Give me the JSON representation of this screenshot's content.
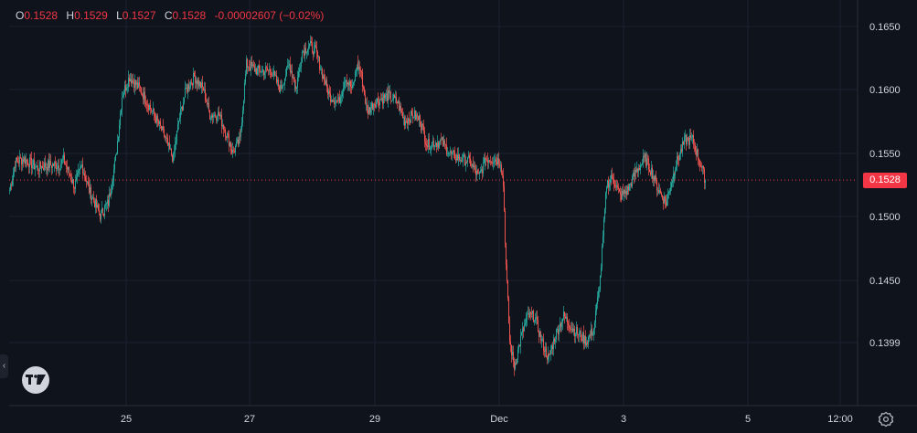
{
  "ohlc": {
    "o_label": "O",
    "o_value": "0.1528",
    "h_label": "H",
    "h_value": "0.1529",
    "l_label": "L",
    "l_value": "0.1527",
    "c_label": "C",
    "c_value": "0.1528",
    "change": "-0.00002607 (−0.02%)"
  },
  "current_price_label": "0.1528",
  "colors": {
    "background": "#0f131c",
    "up": "#26a69a",
    "down": "#ef5350",
    "grid": "#1c2030",
    "price_line": "#f23645"
  },
  "icons": [
    "collapse-chevron-icon",
    "tradingview-logo-icon",
    "settings-gear-icon"
  ],
  "chart_data": {
    "type": "candlestick",
    "y_ticks": [
      "0.1650",
      "0.1600",
      "0.1550",
      "0.1500",
      "0.1450",
      "0.1399"
    ],
    "x_ticks": [
      "25",
      "27",
      "29",
      "Dec",
      "3",
      "5",
      "12:00"
    ],
    "ylim": [
      0.1363,
      0.1667
    ],
    "current_price": 0.1528,
    "grid": true,
    "anchors": [
      [
        0,
        0.152
      ],
      [
        6,
        0.1542
      ],
      [
        15,
        0.1545
      ],
      [
        30,
        0.1538
      ],
      [
        45,
        0.154
      ],
      [
        55,
        0.154
      ],
      [
        60,
        0.1544
      ],
      [
        72,
        0.1523
      ],
      [
        80,
        0.154
      ],
      [
        88,
        0.152
      ],
      [
        100,
        0.15
      ],
      [
        110,
        0.151
      ],
      [
        118,
        0.1545
      ],
      [
        125,
        0.1595
      ],
      [
        133,
        0.161
      ],
      [
        145,
        0.16
      ],
      [
        160,
        0.158
      ],
      [
        170,
        0.1565
      ],
      [
        182,
        0.1545
      ],
      [
        188,
        0.1575
      ],
      [
        196,
        0.16
      ],
      [
        205,
        0.161
      ],
      [
        215,
        0.16
      ],
      [
        222,
        0.158
      ],
      [
        232,
        0.158
      ],
      [
        240,
        0.1565
      ],
      [
        248,
        0.155
      ],
      [
        256,
        0.156
      ],
      [
        263,
        0.162
      ],
      [
        275,
        0.1615
      ],
      [
        290,
        0.1615
      ],
      [
        300,
        0.16
      ],
      [
        310,
        0.162
      ],
      [
        318,
        0.16
      ],
      [
        325,
        0.163
      ],
      [
        333,
        0.1635
      ],
      [
        340,
        0.163
      ],
      [
        348,
        0.161
      ],
      [
        355,
        0.1595
      ],
      [
        365,
        0.159
      ],
      [
        372,
        0.161
      ],
      [
        380,
        0.16
      ],
      [
        385,
        0.162
      ],
      [
        390,
        0.1615
      ],
      [
        397,
        0.1582
      ],
      [
        405,
        0.159
      ],
      [
        420,
        0.1595
      ],
      [
        430,
        0.159
      ],
      [
        438,
        0.1575
      ],
      [
        448,
        0.158
      ],
      [
        456,
        0.1575
      ],
      [
        464,
        0.1556
      ],
      [
        470,
        0.1558
      ],
      [
        480,
        0.1558
      ],
      [
        490,
        0.1548
      ],
      [
        500,
        0.1545
      ],
      [
        510,
        0.1543
      ],
      [
        520,
        0.153
      ],
      [
        528,
        0.1545
      ],
      [
        537,
        0.1545
      ],
      [
        545,
        0.1543
      ],
      [
        548,
        0.1525
      ],
      [
        551,
        0.146
      ],
      [
        555,
        0.14
      ],
      [
        560,
        0.138
      ],
      [
        568,
        0.1405
      ],
      [
        575,
        0.142
      ],
      [
        582,
        0.142
      ],
      [
        590,
        0.14
      ],
      [
        598,
        0.1385
      ],
      [
        606,
        0.1405
      ],
      [
        615,
        0.142
      ],
      [
        625,
        0.141
      ],
      [
        640,
        0.14
      ],
      [
        648,
        0.141
      ],
      [
        655,
        0.145
      ],
      [
        662,
        0.1525
      ],
      [
        670,
        0.153
      ],
      [
        678,
        0.1515
      ],
      [
        686,
        0.152
      ],
      [
        695,
        0.1535
      ],
      [
        705,
        0.1545
      ],
      [
        712,
        0.1535
      ],
      [
        720,
        0.152
      ],
      [
        728,
        0.151
      ],
      [
        735,
        0.153
      ],
      [
        742,
        0.1545
      ],
      [
        750,
        0.156
      ],
      [
        758,
        0.156
      ],
      [
        765,
        0.1545
      ],
      [
        772,
        0.1528
      ]
    ]
  }
}
